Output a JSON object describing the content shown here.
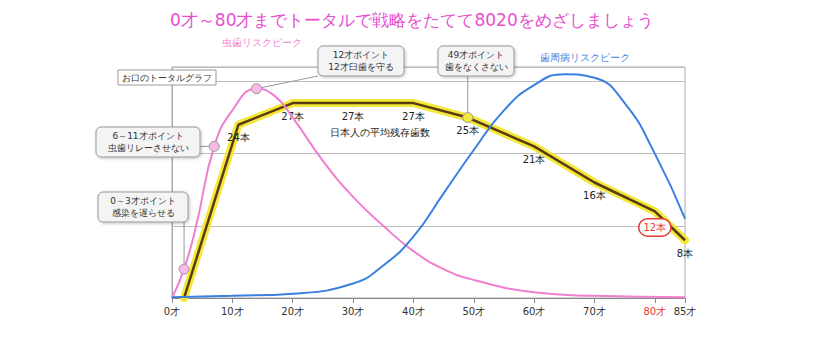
{
  "chart_data": {
    "type": "line",
    "title": "0才～80才までトータルで戦略をたてて8020をめざしましょう",
    "subtitle": "お口のトータルグラフ",
    "xlim": [
      0,
      85
    ],
    "xticks": [
      {
        "value": 0,
        "label": "0才"
      },
      {
        "value": 10,
        "label": "10才"
      },
      {
        "value": 20,
        "label": "20才"
      },
      {
        "value": 30,
        "label": "30才"
      },
      {
        "value": 40,
        "label": "40才"
      },
      {
        "value": 50,
        "label": "50才"
      },
      {
        "value": 60,
        "label": "60才"
      },
      {
        "value": 70,
        "label": "70才"
      },
      {
        "value": 80,
        "label": "80才",
        "color": "#e53935"
      },
      {
        "value": 85,
        "label": "85才"
      }
    ],
    "ylim": [
      0,
      32
    ],
    "yticks": [
      0,
      10,
      20,
      30
    ],
    "grid": true,
    "tick_labels": "x",
    "annotations": [
      "0～3才ポイント\n感染を遅らせる",
      "6～11才ポイント\n虫歯リレーさせない",
      "12才ポイント\n12才臼歯を守る",
      "49才ポイント\n歯をなくさない"
    ],
    "series": [
      {
        "name": "日本人の平均残存歯数",
        "color": "#5a3a10",
        "line_style": "highlighted",
        "data_labels": true,
        "x": [
          2,
          11,
          20,
          30,
          40,
          49,
          60,
          70,
          80,
          85
        ],
        "values": [
          0,
          24,
          27,
          27,
          27,
          25,
          21,
          16,
          12,
          8
        ],
        "value_labels": [
          null,
          "24本",
          "27本",
          "27本",
          "27本",
          "25本",
          "21本",
          "16本",
          "12本",
          "8本"
        ],
        "colors": [
          "#5a3a10",
          "#5a3a10",
          "#5a3a10",
          "#5a3a10",
          "#5a3a10",
          "#5a3a10",
          "#5a3a10",
          "#5a3a10",
          "#e53935",
          "#5a3a10"
        ]
      },
      {
        "name": "虫歯リスクピーク",
        "color": "#f07fcf",
        "line_style": "smooth",
        "x": [
          0,
          2,
          4,
          7,
          10,
          14,
          17,
          20,
          25,
          30,
          35,
          40,
          45,
          50,
          60,
          70,
          85
        ],
        "values": [
          0,
          4,
          10,
          21,
          26,
          29,
          28,
          25,
          19,
          14,
          10,
          6.5,
          4,
          2.5,
          0.8,
          0.3,
          0.1
        ]
      },
      {
        "name": "歯周病リスクピーク",
        "color": "#3b7fe0",
        "line_style": "smooth",
        "x": [
          0,
          10,
          20,
          30,
          35,
          40,
          45,
          50,
          55,
          60,
          65,
          70,
          75,
          80,
          85
        ],
        "values": [
          0.1,
          0.3,
          0.6,
          2,
          4.5,
          8.5,
          14.5,
          20.5,
          26,
          29.5,
          31,
          30.5,
          27,
          20,
          11
        ]
      }
    ]
  }
}
